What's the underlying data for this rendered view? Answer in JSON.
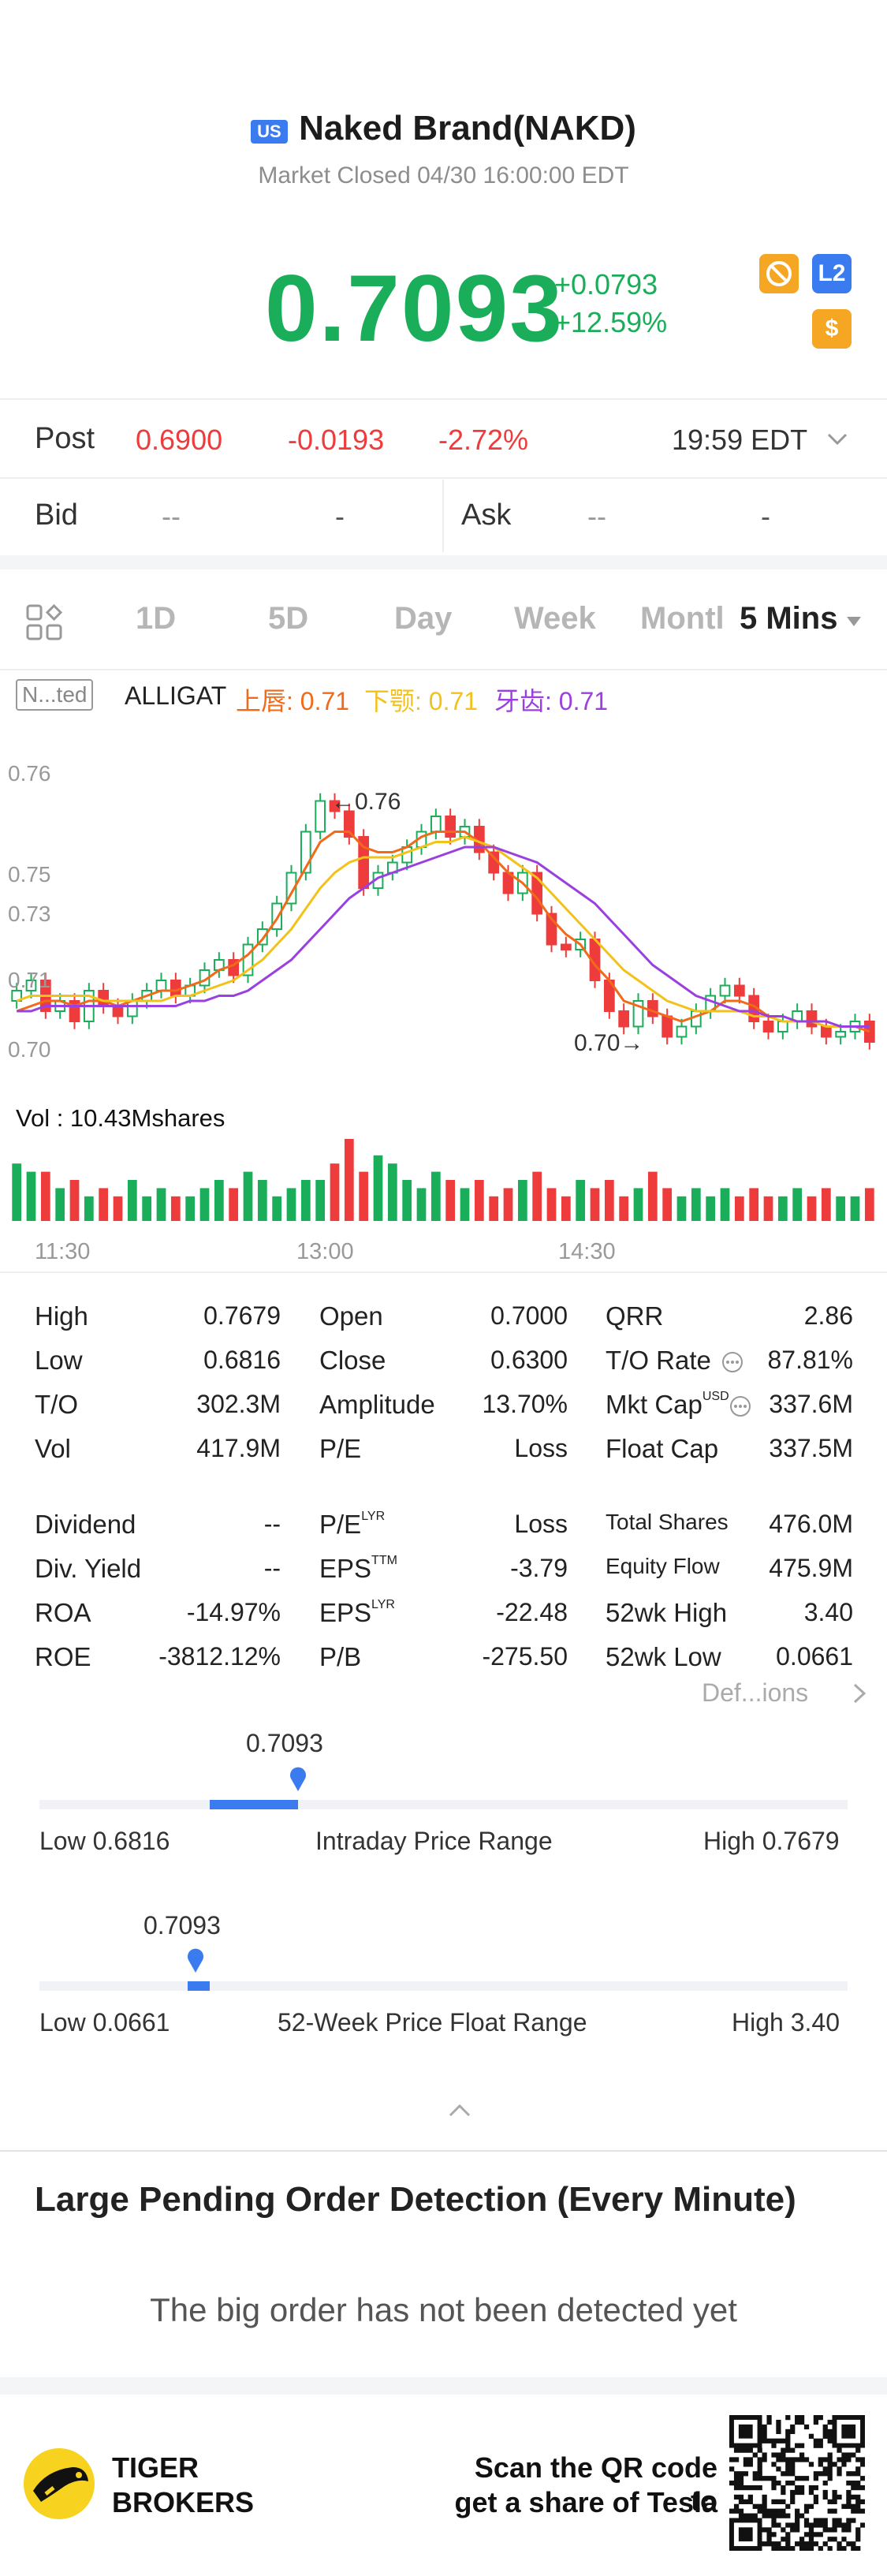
{
  "header": {
    "market_badge": "US",
    "stock_name": "Naked Brand(NAKD)",
    "market_status": "Market Closed 04/30 16:00:00 EDT",
    "price": "0.7093",
    "change": "+0.0793",
    "change_pct": "+12.59%",
    "l2_label": "L2",
    "dollar_label": "$"
  },
  "post": {
    "label": "Post",
    "price": "0.6900",
    "change": "-0.0193",
    "change_pct": "-2.72%",
    "time": "19:59 EDT"
  },
  "bid": {
    "label": "Bid",
    "v1": "--",
    "v2": "-"
  },
  "ask": {
    "label": "Ask",
    "v1": "--",
    "v2": "-"
  },
  "tabs": {
    "items": [
      "1D",
      "5D",
      "Day",
      "Week",
      "Montl"
    ],
    "selected": "5 Mins"
  },
  "indicator": {
    "tag": "N...ted",
    "name": "ALLIGAT",
    "lip": "上唇: 0.71",
    "teeth": "下颚: 0.71",
    "jaw": "牙齿: 0.71"
  },
  "chart_data": {
    "type": "line",
    "y_ticks": [
      "0.76",
      "0.75",
      "0.73",
      "0.71",
      "0.70"
    ],
    "x_ticks": [
      "11:30",
      "13:00",
      "14:30"
    ],
    "annotations": {
      "high": "←0.76",
      "low": "0.70→"
    },
    "volume_label": "Vol  : 10.43Mshares",
    "colors": {
      "up": "#1aae5a",
      "down": "#ee3b3b",
      "lip": "#f06a1a",
      "teeth": "#f3c21a",
      "jaw": "#9b40e0"
    },
    "closes": [
      0.718,
      0.72,
      0.714,
      0.716,
      0.712,
      0.718,
      0.715,
      0.713,
      0.716,
      0.718,
      0.72,
      0.717,
      0.719,
      0.722,
      0.724,
      0.721,
      0.727,
      0.73,
      0.735,
      0.741,
      0.749,
      0.755,
      0.753,
      0.748,
      0.738,
      0.741,
      0.743,
      0.746,
      0.749,
      0.752,
      0.748,
      0.75,
      0.745,
      0.741,
      0.737,
      0.741,
      0.733,
      0.727,
      0.726,
      0.728,
      0.72,
      0.714,
      0.711,
      0.716,
      0.713,
      0.709,
      0.711,
      0.714,
      0.717,
      0.719,
      0.717,
      0.712,
      0.71,
      0.712,
      0.714,
      0.711,
      0.709,
      0.71,
      0.712,
      0.708
    ],
    "lip": [
      0.714,
      0.715,
      0.716,
      0.716,
      0.715,
      0.716,
      0.716,
      0.715,
      0.716,
      0.717,
      0.718,
      0.718,
      0.719,
      0.72,
      0.722,
      0.723,
      0.725,
      0.728,
      0.732,
      0.737,
      0.742,
      0.747,
      0.749,
      0.749,
      0.746,
      0.745,
      0.745,
      0.746,
      0.748,
      0.749,
      0.749,
      0.749,
      0.747,
      0.744,
      0.741,
      0.739,
      0.736,
      0.732,
      0.729,
      0.727,
      0.723,
      0.72,
      0.716,
      0.715,
      0.714,
      0.713,
      0.712,
      0.713,
      0.714,
      0.716,
      0.716,
      0.715,
      0.713,
      0.712,
      0.712,
      0.712,
      0.711,
      0.711,
      0.711,
      0.71
    ],
    "teeth": [
      0.716,
      0.717,
      0.717,
      0.717,
      0.717,
      0.717,
      0.716,
      0.716,
      0.716,
      0.716,
      0.716,
      0.717,
      0.717,
      0.718,
      0.719,
      0.72,
      0.722,
      0.724,
      0.727,
      0.73,
      0.734,
      0.738,
      0.741,
      0.743,
      0.744,
      0.744,
      0.744,
      0.745,
      0.746,
      0.747,
      0.747,
      0.748,
      0.747,
      0.746,
      0.744,
      0.742,
      0.74,
      0.737,
      0.734,
      0.731,
      0.728,
      0.725,
      0.722,
      0.72,
      0.718,
      0.716,
      0.715,
      0.714,
      0.714,
      0.714,
      0.714,
      0.713,
      0.713,
      0.712,
      0.712,
      0.712,
      0.711,
      0.711,
      0.711,
      0.711
    ],
    "jaw": [
      0.714,
      0.714,
      0.715,
      0.715,
      0.715,
      0.715,
      0.715,
      0.715,
      0.715,
      0.715,
      0.715,
      0.715,
      0.716,
      0.716,
      0.717,
      0.717,
      0.718,
      0.72,
      0.722,
      0.724,
      0.727,
      0.73,
      0.733,
      0.736,
      0.738,
      0.74,
      0.741,
      0.742,
      0.743,
      0.744,
      0.745,
      0.746,
      0.746,
      0.746,
      0.745,
      0.744,
      0.743,
      0.741,
      0.739,
      0.737,
      0.735,
      0.732,
      0.729,
      0.726,
      0.723,
      0.721,
      0.719,
      0.717,
      0.716,
      0.715,
      0.714,
      0.714,
      0.713,
      0.713,
      0.712,
      0.712,
      0.712,
      0.711,
      0.711,
      0.711
    ],
    "volume": [
      7,
      6,
      6,
      4,
      5,
      3,
      4,
      3,
      5,
      3,
      4,
      3,
      3,
      4,
      5,
      4,
      6,
      5,
      3,
      4,
      5,
      5,
      7,
      10,
      6,
      8,
      7,
      5,
      4,
      6,
      5,
      4,
      5,
      3,
      4,
      5,
      6,
      4,
      3,
      5,
      4,
      5,
      3,
      4,
      6,
      4,
      3,
      4,
      3,
      4,
      3,
      4,
      3,
      3,
      4,
      3,
      4,
      3,
      3,
      4
    ]
  },
  "stats": {
    "col1": [
      {
        "label": "High",
        "value": "0.7679"
      },
      {
        "label": "Low",
        "value": "0.6816"
      },
      {
        "label": "T/O",
        "value": "302.3M"
      },
      {
        "label": "Vol",
        "value": "417.9M"
      },
      {
        "label": "Dividend",
        "value": "--"
      },
      {
        "label": "Div. Yield",
        "value": "--"
      },
      {
        "label": "ROA",
        "value": "-14.97%"
      },
      {
        "label": "ROE",
        "value": "-3812.12%"
      }
    ],
    "col2": [
      {
        "label": "Open",
        "value": "0.7000",
        "sup": ""
      },
      {
        "label": "Close",
        "value": "0.6300",
        "sup": ""
      },
      {
        "label": "Amplitude",
        "value": "13.70%",
        "sup": ""
      },
      {
        "label": "P/E",
        "value": "Loss",
        "sup": ""
      },
      {
        "label": "P/E",
        "value": "Loss",
        "sup": "LYR"
      },
      {
        "label": "EPS",
        "value": "-3.79",
        "sup": "TTM"
      },
      {
        "label": "EPS",
        "value": "-22.48",
        "sup": "LYR"
      },
      {
        "label": "P/B",
        "value": "-275.50",
        "sup": ""
      }
    ],
    "col3": [
      {
        "label": "QRR",
        "value": "2.86",
        "sup": ""
      },
      {
        "label": "T/O Rate",
        "value": "87.81%",
        "sup": ""
      },
      {
        "label": "Mkt Cap",
        "value": "337.6M",
        "sup": "USD"
      },
      {
        "label": "Float Cap",
        "value": "337.5M",
        "sup": ""
      },
      {
        "label": "Total Shares",
        "value": "476.0M",
        "sup": ""
      },
      {
        "label": "Equity Flow",
        "value": "475.9M",
        "sup": ""
      },
      {
        "label": "52wk High",
        "value": "3.40",
        "sup": ""
      },
      {
        "label": "52wk Low",
        "value": "0.0661",
        "sup": ""
      }
    ],
    "definitions_link": "Def...ions"
  },
  "intraday_range": {
    "current": "0.7093",
    "low_label": "Low 0.6816",
    "title": "Intraday Price Range",
    "high_label": "High 0.7679",
    "position": 0.32
  },
  "week52_range": {
    "current": "0.7093",
    "low_label": "Low 0.0661",
    "title": "52-Week Price Float Range",
    "high_label": "High 3.40",
    "position": 0.193
  },
  "orders": {
    "title": "Large Pending Order Detection (Every Minute)",
    "empty": "The big order has not been detected yet"
  },
  "footer": {
    "brand_line1": "TIGER",
    "brand_line2": "BROKERS",
    "cta_line1": "Scan the QR code to",
    "cta_line2": "get a share of Tesla"
  }
}
